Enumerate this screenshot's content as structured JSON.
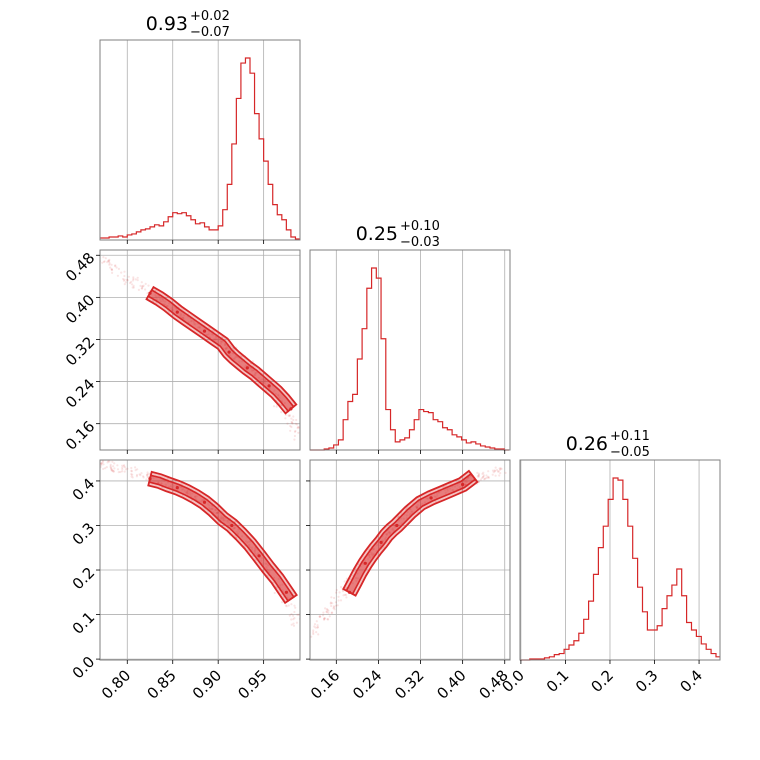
{
  "chart_data": {
    "type": "corner",
    "style": {
      "color": "#d62728",
      "grid": true
    },
    "parameters": [
      {
        "title_value": "0.93",
        "title_plus": "+0.02",
        "title_minus": "−0.07",
        "ticks": [
          "0.80",
          "0.85",
          "0.90",
          "0.95"
        ],
        "range": [
          0.77,
          0.99
        ],
        "hist_x": [
          0.77,
          0.775,
          0.78,
          0.785,
          0.79,
          0.795,
          0.8,
          0.805,
          0.81,
          0.815,
          0.82,
          0.825,
          0.83,
          0.835,
          0.84,
          0.845,
          0.85,
          0.855,
          0.86,
          0.865,
          0.87,
          0.875,
          0.88,
          0.885,
          0.89,
          0.895,
          0.9,
          0.905,
          0.91,
          0.915,
          0.92,
          0.925,
          0.93,
          0.935,
          0.94,
          0.945,
          0.95,
          0.955,
          0.96,
          0.965,
          0.97,
          0.975,
          0.98,
          0.985
        ],
        "hist_counts": [
          2,
          2,
          3,
          3,
          4,
          3,
          5,
          6,
          8,
          10,
          11,
          13,
          15,
          14,
          18,
          23,
          27,
          26,
          27,
          24,
          20,
          16,
          17,
          13,
          10,
          10,
          14,
          30,
          55,
          95,
          140,
          175,
          180,
          165,
          125,
          100,
          78,
          55,
          35,
          25,
          20,
          10,
          3,
          1
        ]
      },
      {
        "title_value": "0.25",
        "title_plus": "+0.10",
        "title_minus": "−0.03",
        "ticks": [
          "0.16",
          "0.24",
          "0.32",
          "0.40",
          "0.48"
        ],
        "range": [
          0.11,
          0.49
        ],
        "hist_x": [
          0.11,
          0.119,
          0.128,
          0.137,
          0.146,
          0.155,
          0.164,
          0.173,
          0.182,
          0.191,
          0.2,
          0.209,
          0.218,
          0.227,
          0.236,
          0.245,
          0.254,
          0.263,
          0.272,
          0.281,
          0.29,
          0.299,
          0.308,
          0.317,
          0.326,
          0.335,
          0.344,
          0.353,
          0.362,
          0.371,
          0.38,
          0.389,
          0.398,
          0.407,
          0.416,
          0.425,
          0.434,
          0.443,
          0.452,
          0.461,
          0.47,
          0.479
        ],
        "hist_counts": [
          0,
          0,
          0,
          1,
          2,
          5,
          10,
          30,
          48,
          55,
          90,
          120,
          160,
          180,
          170,
          110,
          40,
          20,
          8,
          10,
          12,
          20,
          30,
          40,
          38,
          37,
          30,
          28,
          22,
          20,
          15,
          13,
          10,
          7,
          8,
          6,
          4,
          3,
          2,
          1,
          1,
          0
        ]
      },
      {
        "title_value": "0.26",
        "title_plus": "+0.11",
        "title_minus": "−0.05",
        "ticks": [
          "0.0",
          "0.1",
          "0.2",
          "0.3",
          "0.4"
        ],
        "range": [
          -0.002,
          0.447
        ],
        "hist_x": [
          -0.002,
          0.009,
          0.02,
          0.031,
          0.042,
          0.053,
          0.064,
          0.075,
          0.086,
          0.097,
          0.108,
          0.119,
          0.13,
          0.141,
          0.152,
          0.163,
          0.174,
          0.185,
          0.196,
          0.207,
          0.218,
          0.229,
          0.24,
          0.251,
          0.262,
          0.273,
          0.284,
          0.295,
          0.306,
          0.317,
          0.328,
          0.339,
          0.35,
          0.361,
          0.372,
          0.383,
          0.394,
          0.405,
          0.416,
          0.427,
          0.438
        ],
        "hist_counts": [
          0,
          0,
          1,
          1,
          1,
          2,
          3,
          5,
          6,
          10,
          14,
          18,
          25,
          38,
          55,
          80,
          105,
          125,
          150,
          170,
          168,
          150,
          125,
          95,
          68,
          45,
          28,
          28,
          32,
          48,
          60,
          70,
          85,
          60,
          35,
          28,
          22,
          15,
          10,
          6,
          3
        ]
      }
    ],
    "pairs": [
      {
        "x_param": 0,
        "y_param": 1,
        "y_ticks": [
          "0.16",
          "0.24",
          "0.32",
          "0.40",
          "0.48"
        ],
        "ridge": [
          [
            0.77,
            0.475
          ],
          [
            0.8,
            0.435
          ],
          [
            0.83,
            0.405
          ],
          [
            0.85,
            0.38
          ],
          [
            0.87,
            0.355
          ],
          [
            0.89,
            0.33
          ],
          [
            0.91,
            0.305
          ],
          [
            0.93,
            0.275
          ],
          [
            0.95,
            0.24
          ],
          [
            0.97,
            0.195
          ],
          [
            0.99,
            0.135
          ]
        ],
        "contour_points_x": [
          0.825,
          0.835,
          0.845,
          0.855,
          0.865,
          0.875,
          0.885,
          0.895,
          0.905,
          0.912,
          0.918,
          0.925,
          0.932,
          0.94,
          0.948,
          0.956,
          0.964,
          0.972,
          0.98
        ],
        "contour_points_y": [
          0.408,
          0.398,
          0.386,
          0.372,
          0.36,
          0.348,
          0.336,
          0.324,
          0.312,
          0.296,
          0.286,
          0.276,
          0.266,
          0.256,
          0.244,
          0.232,
          0.22,
          0.205,
          0.188
        ]
      },
      {
        "x_param": 0,
        "y_param": 2,
        "y_ticks": [
          "0.0",
          "0.1",
          "0.2",
          "0.3",
          "0.4"
        ],
        "ridge": [
          [
            0.77,
            0.44
          ],
          [
            0.8,
            0.425
          ],
          [
            0.83,
            0.405
          ],
          [
            0.85,
            0.39
          ],
          [
            0.87,
            0.37
          ],
          [
            0.89,
            0.345
          ],
          [
            0.91,
            0.31
          ],
          [
            0.93,
            0.265
          ],
          [
            0.95,
            0.215
          ],
          [
            0.97,
            0.15
          ],
          [
            0.99,
            0.07
          ]
        ],
        "contour_points_x": [
          0.825,
          0.835,
          0.845,
          0.855,
          0.865,
          0.875,
          0.885,
          0.895,
          0.905,
          0.915,
          0.925,
          0.935,
          0.945,
          0.955,
          0.965,
          0.975,
          0.98
        ],
        "contour_points_y": [
          0.405,
          0.4,
          0.392,
          0.385,
          0.376,
          0.365,
          0.352,
          0.335,
          0.315,
          0.3,
          0.28,
          0.258,
          0.232,
          0.205,
          0.18,
          0.15,
          0.135
        ]
      },
      {
        "x_param": 1,
        "y_param": 2,
        "ridge": [
          [
            0.11,
            0.05
          ],
          [
            0.14,
            0.1
          ],
          [
            0.17,
            0.15
          ],
          [
            0.2,
            0.2
          ],
          [
            0.23,
            0.24
          ],
          [
            0.26,
            0.28
          ],
          [
            0.29,
            0.32
          ],
          [
            0.32,
            0.35
          ],
          [
            0.36,
            0.375
          ],
          [
            0.4,
            0.395
          ],
          [
            0.44,
            0.41
          ],
          [
            0.48,
            0.425
          ]
        ],
        "contour_points_x": [
          0.185,
          0.195,
          0.205,
          0.215,
          0.225,
          0.235,
          0.245,
          0.255,
          0.265,
          0.275,
          0.3,
          0.32,
          0.34,
          0.36,
          0.38,
          0.4,
          0.42
        ],
        "contour_points_y": [
          0.15,
          0.172,
          0.195,
          0.215,
          0.232,
          0.248,
          0.262,
          0.278,
          0.29,
          0.3,
          0.33,
          0.35,
          0.362,
          0.372,
          0.382,
          0.392,
          0.41
        ]
      }
    ]
  }
}
